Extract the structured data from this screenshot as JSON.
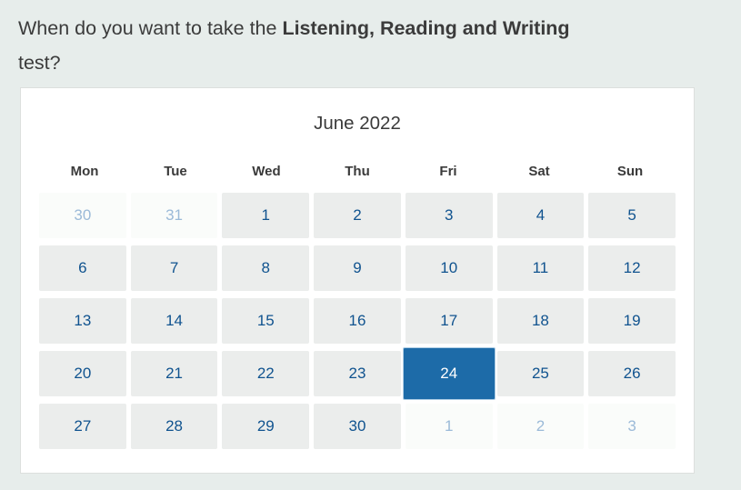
{
  "page": {
    "background": "#e7edeb"
  },
  "question": {
    "text_before_bold": "When do you want to take the ",
    "bold_text": "Listening, Reading and Writing",
    "line2": "test?"
  },
  "calendar": {
    "month_title": "June 2022",
    "day_headers": [
      "Mon",
      "Tue",
      "Wed",
      "Thu",
      "Fri",
      "Sat",
      "Sun"
    ],
    "selected_date": "24",
    "weeks": [
      [
        {
          "label": "30",
          "outside": true
        },
        {
          "label": "31",
          "outside": true
        },
        {
          "label": "1"
        },
        {
          "label": "2"
        },
        {
          "label": "3"
        },
        {
          "label": "4"
        },
        {
          "label": "5"
        }
      ],
      [
        {
          "label": "6"
        },
        {
          "label": "7"
        },
        {
          "label": "8"
        },
        {
          "label": "9"
        },
        {
          "label": "10"
        },
        {
          "label": "11"
        },
        {
          "label": "12"
        }
      ],
      [
        {
          "label": "13"
        },
        {
          "label": "14"
        },
        {
          "label": "15"
        },
        {
          "label": "16"
        },
        {
          "label": "17"
        },
        {
          "label": "18"
        },
        {
          "label": "19"
        }
      ],
      [
        {
          "label": "20"
        },
        {
          "label": "21"
        },
        {
          "label": "22"
        },
        {
          "label": "23"
        },
        {
          "label": "24",
          "selected": true
        },
        {
          "label": "25"
        },
        {
          "label": "26"
        }
      ],
      [
        {
          "label": "27"
        },
        {
          "label": "28"
        },
        {
          "label": "29"
        },
        {
          "label": "30"
        },
        {
          "label": "1",
          "outside": true
        },
        {
          "label": "2",
          "outside": true
        },
        {
          "label": "3",
          "outside": true
        }
      ]
    ],
    "colors": {
      "selected_bg": "#1d6ba8",
      "selected_ring": "#aecde5",
      "day_bg": "#ebedec",
      "day_text": "#10538f",
      "outside_bg": "#fafcfa",
      "outside_text": "#9bbad8"
    }
  }
}
